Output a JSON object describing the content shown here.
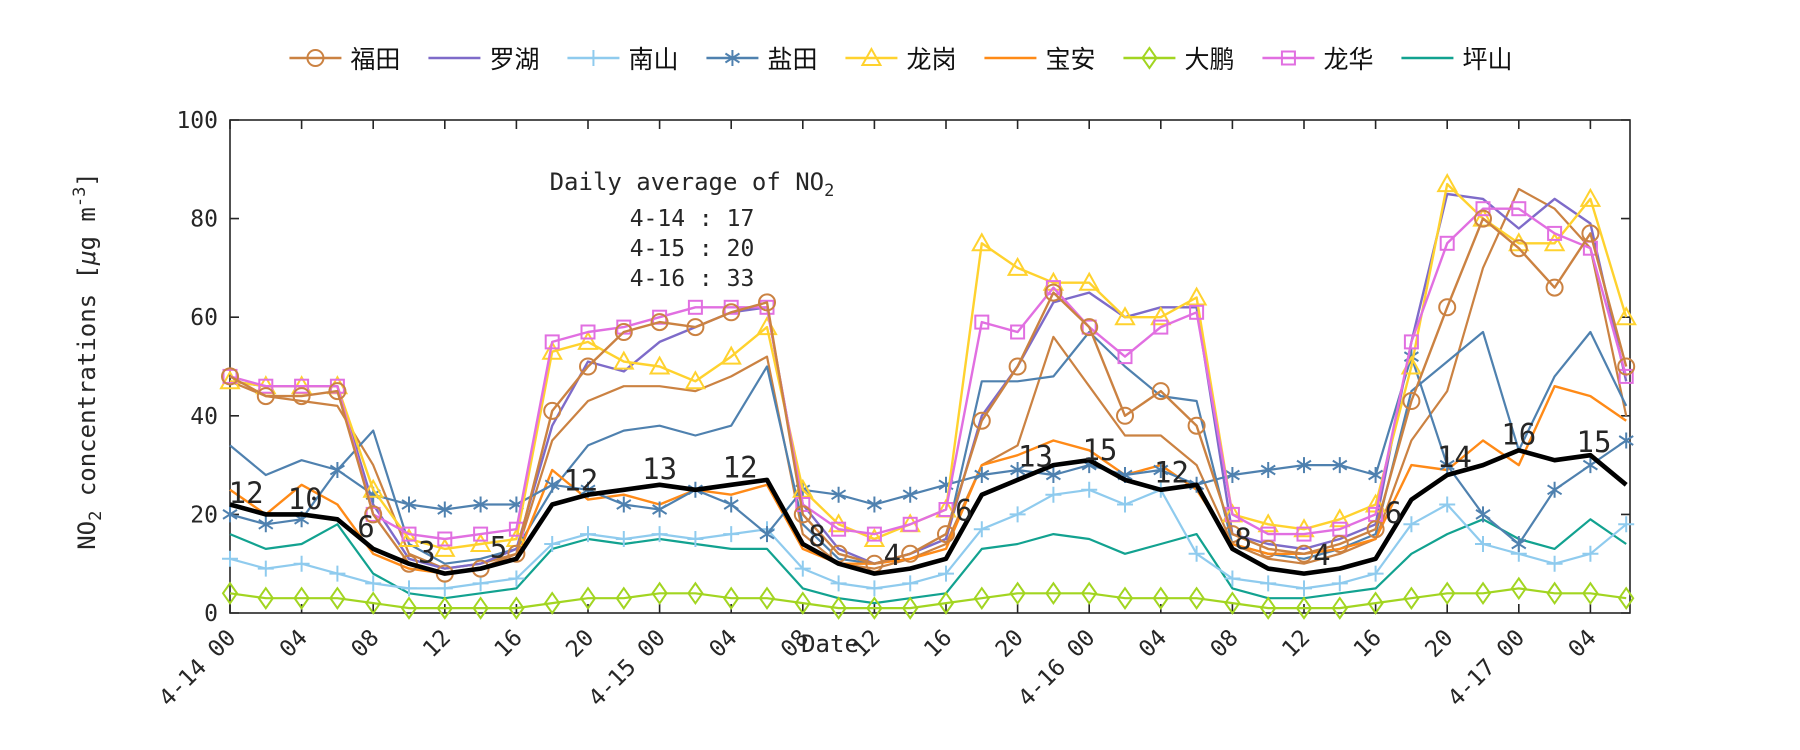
{
  "figure": {
    "xlabel": "Date",
    "ylabel_segments": [
      {
        "t": "NO"
      },
      {
        "t": "2",
        "pos": "sub"
      },
      {
        "t": " concentrations ["
      },
      {
        "t": "μ",
        "italic": true
      },
      {
        "t": "g m"
      },
      {
        "t": "-3",
        "pos": "sup"
      },
      {
        "t": "]"
      }
    ],
    "annotation": {
      "title_segments": [
        {
          "t": "Daily average of NO"
        },
        {
          "t": "2",
          "pos": "sub"
        }
      ],
      "lines": [
        "4-14 : 17",
        "4-15 : 20",
        "4-16 : 33"
      ]
    }
  },
  "legend": {
    "items": [
      {
        "key": "futian",
        "label": "福田"
      },
      {
        "key": "luohu",
        "label": "罗湖"
      },
      {
        "key": "nanshan",
        "label": "南山"
      },
      {
        "key": "yantian",
        "label": "盐田"
      },
      {
        "key": "longgang",
        "label": "龙岗"
      },
      {
        "key": "baoan",
        "label": "宝安"
      },
      {
        "key": "dapeng",
        "label": "大鹏"
      },
      {
        "key": "longhua",
        "label": "龙华"
      },
      {
        "key": "pingshan",
        "label": "坪山"
      }
    ]
  },
  "chart_data": {
    "type": "line",
    "title": "",
    "xlabel": "Date",
    "ylabel": "NO2 concentrations [ug m-3]",
    "ylim": [
      0,
      100
    ],
    "y_ticks": [
      0,
      20,
      40,
      60,
      80,
      100
    ],
    "x_unit": "hours since 4-14 00:00",
    "hours": [
      0,
      2,
      4,
      6,
      8,
      10,
      12,
      14,
      16,
      18,
      20,
      22,
      24,
      26,
      28,
      30,
      32,
      34,
      36,
      38,
      40,
      42,
      44,
      46,
      48,
      50,
      52,
      54,
      56,
      58,
      60,
      62,
      64,
      66,
      68,
      70,
      72,
      74,
      76,
      78
    ],
    "x_ticks": [
      {
        "h": 0,
        "label": "4-14 00"
      },
      {
        "h": 4,
        "label": "04"
      },
      {
        "h": 8,
        "label": "08"
      },
      {
        "h": 12,
        "label": "12"
      },
      {
        "h": 16,
        "label": "16"
      },
      {
        "h": 20,
        "label": "20"
      },
      {
        "h": 24,
        "label": "4-15 00"
      },
      {
        "h": 28,
        "label": "04"
      },
      {
        "h": 32,
        "label": "08"
      },
      {
        "h": 36,
        "label": "12"
      },
      {
        "h": 40,
        "label": "16"
      },
      {
        "h": 44,
        "label": "20"
      },
      {
        "h": 48,
        "label": "4-16 00"
      },
      {
        "h": 52,
        "label": "04"
      },
      {
        "h": 56,
        "label": "08"
      },
      {
        "h": 60,
        "label": "12"
      },
      {
        "h": 64,
        "label": "16"
      },
      {
        "h": 68,
        "label": "20"
      },
      {
        "h": 72,
        "label": "4-17 00"
      },
      {
        "h": 76,
        "label": "04"
      }
    ],
    "series": [
      {
        "key": "aux_tan",
        "name": "",
        "color": "#CB8242",
        "marker": "none",
        "width": 2.2,
        "values": [
          47,
          44,
          43,
          42,
          30,
          12,
          9,
          10,
          12,
          35,
          43,
          46,
          46,
          45,
          48,
          52,
          16,
          10,
          9,
          11,
          14,
          30,
          34,
          56,
          46,
          36,
          36,
          30,
          14,
          11,
          10,
          12,
          15,
          35,
          45,
          70,
          86,
          82,
          74,
          40
        ]
      },
      {
        "key": "aux_blue",
        "name": "",
        "color": "#4F81AF",
        "marker": "none",
        "width": 2.2,
        "values": [
          34,
          28,
          31,
          29,
          37,
          14,
          10,
          11,
          13,
          25,
          34,
          37,
          38,
          36,
          38,
          50,
          18,
          11,
          10,
          12,
          15,
          47,
          47,
          48,
          57,
          50,
          44,
          43,
          14,
          12,
          11,
          13,
          16,
          45,
          51,
          57,
          33,
          48,
          57,
          42
        ]
      },
      {
        "key": "pingshan",
        "name": "坪山",
        "color": "#12A290",
        "marker": "none",
        "width": 2.2,
        "values": [
          16,
          13,
          14,
          18,
          8,
          4,
          3,
          4,
          5,
          13,
          15,
          14,
          15,
          14,
          13,
          13,
          5,
          3,
          2,
          3,
          4,
          13,
          14,
          16,
          15,
          12,
          14,
          16,
          5,
          3,
          3,
          4,
          5,
          12,
          16,
          19,
          15,
          13,
          19,
          14
        ]
      },
      {
        "key": "baoan",
        "name": "宝安",
        "color": "#FF8A17",
        "marker": "none",
        "width": 2.4,
        "values": [
          25,
          20,
          26,
          22,
          12,
          9,
          8,
          9,
          11,
          29,
          23,
          24,
          22,
          25,
          24,
          26,
          13,
          10,
          10,
          11,
          13,
          30,
          32,
          35,
          33,
          28,
          30,
          25,
          14,
          12,
          12,
          13,
          15,
          30,
          29,
          35,
          30,
          46,
          44,
          39
        ]
      },
      {
        "key": "nanshan",
        "name": "南山",
        "color": "#8FCBEE",
        "marker": "plus",
        "width": 2.2,
        "values": [
          11,
          9,
          10,
          8,
          6,
          5,
          5,
          6,
          7,
          14,
          16,
          15,
          16,
          15,
          16,
          17,
          9,
          6,
          5,
          6,
          8,
          17,
          20,
          24,
          25,
          22,
          25,
          12,
          7,
          6,
          5,
          6,
          8,
          18,
          22,
          14,
          12,
          10,
          12,
          18
        ]
      },
      {
        "key": "luohu",
        "name": "罗湖",
        "color": "#7E6BC9",
        "marker": "none",
        "width": 2.4,
        "values": [
          47,
          46,
          46,
          46,
          22,
          11,
          9,
          10,
          13,
          38,
          51,
          49,
          55,
          58,
          61,
          62,
          22,
          13,
          10,
          12,
          15,
          40,
          50,
          63,
          65,
          60,
          62,
          62,
          16,
          14,
          13,
          15,
          18,
          55,
          85,
          84,
          78,
          84,
          79,
          47
        ]
      },
      {
        "key": "yantian",
        "name": "盐田",
        "color": "#4F81AF",
        "marker": "asterisk",
        "width": 2.2,
        "values": [
          20,
          18,
          19,
          29,
          24,
          22,
          21,
          22,
          22,
          26,
          25,
          22,
          21,
          25,
          22,
          16,
          25,
          24,
          22,
          24,
          26,
          28,
          29,
          28,
          30,
          28,
          29,
          26,
          28,
          29,
          30,
          30,
          28,
          52,
          30,
          20,
          14,
          25,
          30,
          35
        ]
      },
      {
        "key": "longgang",
        "name": "龙岗",
        "color": "#FFD22E",
        "marker": "triangle",
        "width": 2.4,
        "values": [
          47,
          46,
          46,
          46,
          25,
          15,
          13,
          14,
          15,
          53,
          55,
          51,
          50,
          47,
          52,
          58,
          25,
          18,
          15,
          18,
          21,
          75,
          70,
          67,
          67,
          60,
          60,
          64,
          20,
          18,
          17,
          19,
          22,
          50,
          87,
          80,
          75,
          75,
          84,
          60
        ]
      },
      {
        "key": "longhua",
        "name": "龙华",
        "color": "#E16FE1",
        "marker": "square",
        "width": 2.4,
        "values": [
          48,
          46,
          46,
          46,
          20,
          16,
          15,
          16,
          17,
          55,
          57,
          58,
          60,
          62,
          62,
          62,
          22,
          17,
          16,
          18,
          21,
          59,
          57,
          66,
          58,
          52,
          58,
          61,
          20,
          16,
          16,
          17,
          20,
          55,
          75,
          82,
          82,
          77,
          74,
          48
        ]
      },
      {
        "key": "futian",
        "name": "福田",
        "color": "#CB8242",
        "marker": "circle",
        "width": 2.4,
        "values": [
          48,
          44,
          44,
          45,
          20,
          10,
          8,
          9,
          12,
          41,
          50,
          57,
          59,
          58,
          61,
          63,
          20,
          12,
          10,
          12,
          16,
          39,
          50,
          65,
          58,
          40,
          45,
          38,
          16,
          13,
          12,
          14,
          17,
          43,
          62,
          80,
          74,
          66,
          77,
          50
        ]
      },
      {
        "key": "dapeng",
        "name": "大鹏",
        "color": "#A2D521",
        "marker": "diamond",
        "width": 2.2,
        "values": [
          4,
          3,
          3,
          3,
          2,
          1,
          1,
          1,
          1,
          2,
          3,
          3,
          4,
          4,
          3,
          3,
          2,
          1,
          1,
          1,
          2,
          3,
          4,
          4,
          4,
          3,
          3,
          3,
          2,
          1,
          1,
          1,
          2,
          3,
          4,
          4,
          5,
          4,
          4,
          3
        ]
      },
      {
        "key": "mean",
        "name": "",
        "color": "#000000",
        "marker": "none",
        "width": 4.6,
        "values": [
          22,
          20,
          20,
          19,
          13,
          10,
          8,
          9,
          11,
          22,
          24,
          25,
          26,
          25,
          26,
          27,
          14,
          10,
          8,
          9,
          11,
          24,
          27,
          30,
          31,
          27,
          25,
          26,
          13,
          9,
          8,
          9,
          11,
          23,
          28,
          30,
          33,
          31,
          32,
          26
        ]
      }
    ],
    "mean_value_labels": [
      {
        "h": 0.9,
        "text": "12"
      },
      {
        "h": 4.2,
        "text": "10"
      },
      {
        "h": 7.6,
        "text": "6"
      },
      {
        "h": 11,
        "text": "3"
      },
      {
        "h": 15,
        "text": "5"
      },
      {
        "h": 19.6,
        "text": "12"
      },
      {
        "h": 24,
        "text": "13"
      },
      {
        "h": 28.5,
        "text": "12"
      },
      {
        "h": 32.8,
        "text": "8"
      },
      {
        "h": 37,
        "text": "4"
      },
      {
        "h": 41,
        "text": "6"
      },
      {
        "h": 45,
        "text": "13"
      },
      {
        "h": 48.6,
        "text": "15"
      },
      {
        "h": 52.6,
        "text": "12"
      },
      {
        "h": 56.6,
        "text": "8"
      },
      {
        "h": 61,
        "text": "4"
      },
      {
        "h": 65,
        "text": "6"
      },
      {
        "h": 68.4,
        "text": "14"
      },
      {
        "h": 72,
        "text": "16"
      },
      {
        "h": 76.2,
        "text": "15"
      }
    ],
    "legend_position": "top-center-outside",
    "grid": false
  }
}
